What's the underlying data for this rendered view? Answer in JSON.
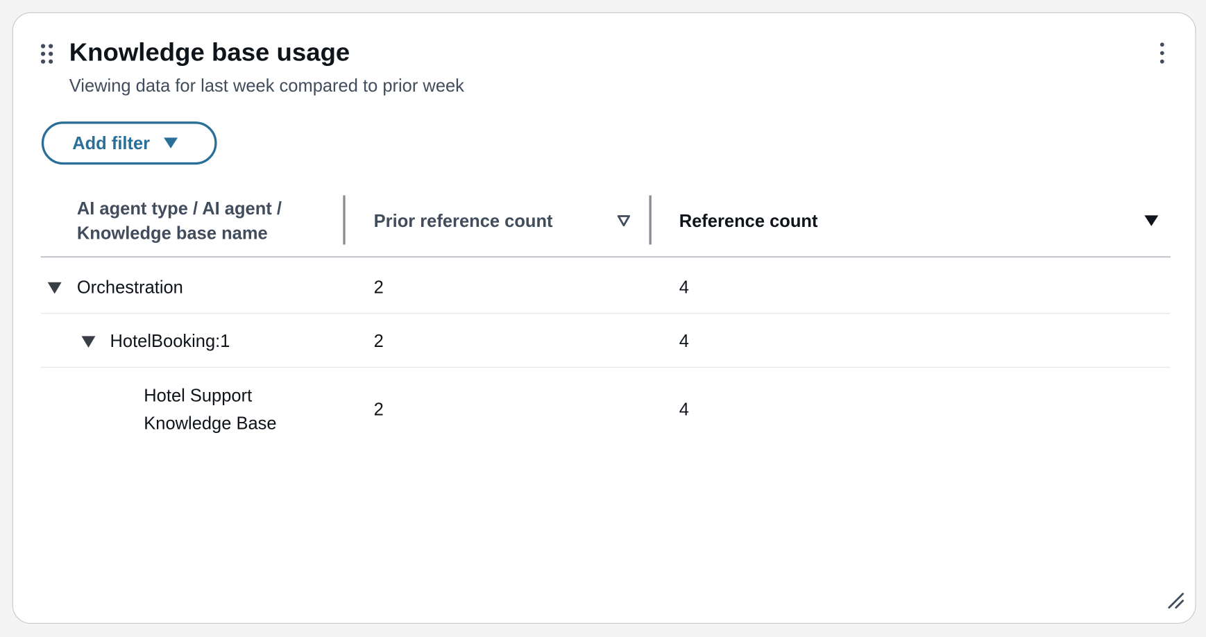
{
  "widget": {
    "title": "Knowledge base usage",
    "subtitle": "Viewing data for last week compared to prior week",
    "add_filter_label": "Add filter",
    "accent_color": "#2a6f97"
  },
  "table": {
    "columns": [
      {
        "line1": "AI agent type / AI agent /",
        "line2": "Knowledge base name"
      },
      {
        "label": "Prior reference count",
        "sort": "unsorted"
      },
      {
        "label": "Reference count",
        "sort": "descending"
      }
    ],
    "rows": [
      {
        "name": "Orchestration",
        "prior": "2",
        "count": "4",
        "level": 0,
        "expanded": true
      },
      {
        "name": "HotelBooking:1",
        "prior": "2",
        "count": "4",
        "level": 1,
        "expanded": true
      },
      {
        "name_line1": "Hotel Support",
        "name_line2": "Knowledge Base",
        "prior": "2",
        "count": "4",
        "level": 2
      }
    ]
  },
  "icons": [
    "drag-handle-icon",
    "more-vertical-icon",
    "caret-down-icon",
    "sort-icon",
    "expand-icon",
    "resize-handle-icon"
  ]
}
